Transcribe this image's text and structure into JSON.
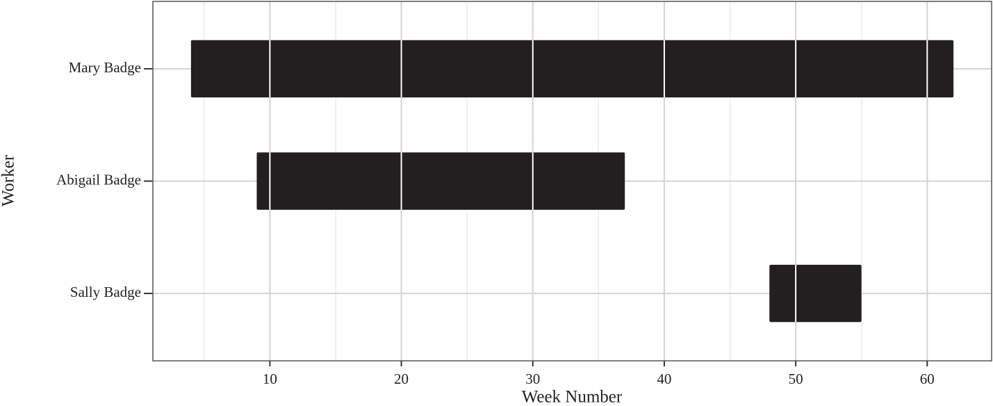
{
  "chart_data": {
    "type": "bar",
    "orientation": "horizontal",
    "x_label": "Week Number",
    "y_label": "Worker",
    "categories": [
      "Mary Badge",
      "Abigail Badge",
      "Sally Badge"
    ],
    "starts": [
      4,
      9,
      48
    ],
    "ends": [
      62,
      37,
      55
    ],
    "color": "#231f20",
    "xlim": [
      1.1,
      64.9
    ],
    "xticks": [
      10,
      20,
      30,
      40,
      50,
      60
    ],
    "x_minor_ticks": [
      5,
      15,
      25,
      35,
      45,
      55
    ],
    "grid": true
  }
}
